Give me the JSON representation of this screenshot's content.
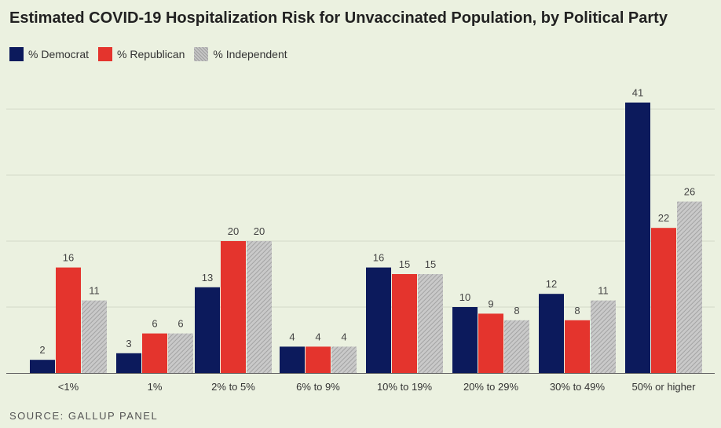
{
  "chart_data": {
    "type": "bar",
    "title": "Estimated COVID-19 Hospitalization Risk for Unvaccinated Population, by Political Party",
    "categories": [
      "<1%",
      "1%",
      "2% to 5%",
      "6% to 9%",
      "10% to 19%",
      "20% to 29%",
      "30% to 49%",
      "50% or higher"
    ],
    "series": [
      {
        "name": "% Democrat",
        "color": "#0c1a5c",
        "values": [
          2,
          3,
          13,
          4,
          16,
          10,
          12,
          41
        ]
      },
      {
        "name": "% Republican",
        "color": "#e4342d",
        "values": [
          16,
          6,
          20,
          4,
          15,
          9,
          8,
          22
        ]
      },
      {
        "name": "% Independent",
        "color": "#b4b4b4",
        "values": [
          11,
          6,
          20,
          4,
          15,
          8,
          11,
          26
        ]
      }
    ],
    "ylim": [
      0,
      41
    ],
    "grid": true,
    "legend_position": "top-left",
    "source": "SOURCE: GALLUP PANEL"
  }
}
